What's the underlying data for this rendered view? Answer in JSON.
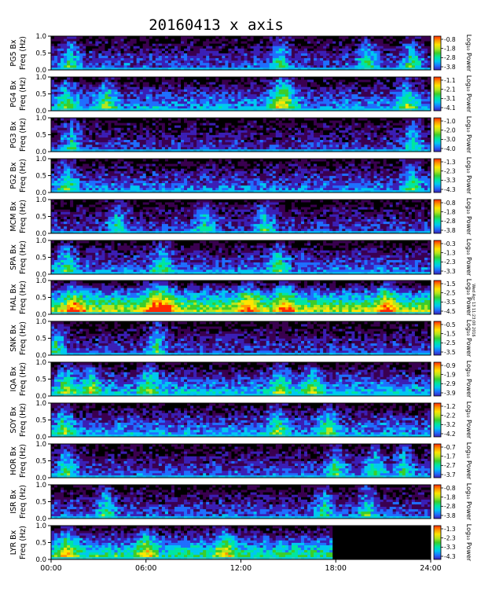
{
  "title": "20160413 x axis",
  "colorbar_label": "Log₁₀ Power",
  "freq_ticks": [
    "1.0",
    "0.5",
    "0.0"
  ],
  "side_note": "Wed Apr 13 11:23:00 2016",
  "colormap": [
    "#000000",
    "#3a0050",
    "#3b1fb5",
    "#1f6fff",
    "#00c8f0",
    "#00e6a0",
    "#3ccd2a",
    "#b4e61e",
    "#ffe600",
    "#ff9600",
    "#ff2800"
  ],
  "chart_data": {
    "type": "heatmap",
    "title": "20160413 x axis",
    "x_ticks": [
      "00:00",
      "06:00",
      "12:00",
      "18:00",
      "24:00"
    ],
    "xlim_hours": [
      0,
      24
    ],
    "ylim_hz": [
      0.0,
      1.0
    ],
    "stations": [
      {
        "label": "PG5 Bx\n(Hz)\nFreq",
        "ylabel": [
          "PG5 Bx",
          "Freq (Hz)"
        ],
        "cbar": [
          "-0.8",
          "-1.8",
          "-2.8",
          "-3.8"
        ],
        "activity": 0.25,
        "events": [
          1.2,
          14.5,
          20.0,
          22.8
        ]
      },
      {
        "label": "PG4 Bx",
        "ylabel": [
          "PG4 Bx",
          "Freq (Hz)"
        ],
        "cbar": [
          "-1.1",
          "-2.1",
          "-3.1",
          "-4.1"
        ],
        "activity": 0.35,
        "events": [
          1.0,
          3.5,
          14.3,
          14.9,
          22.5
        ]
      },
      {
        "label": "PG3 Bx",
        "ylabel": [
          "PG3 Bx",
          "Freq (Hz)"
        ],
        "cbar": [
          "-1.0",
          "-2.0",
          "-3.0",
          "-4.0"
        ],
        "activity": 0.2,
        "events": [
          1.3,
          22.9
        ]
      },
      {
        "label": "PG2 Bx",
        "ylabel": [
          "PG2 Bx",
          "Freq (Hz)"
        ],
        "cbar": [
          "-1.3",
          "-2.3",
          "-3.3",
          "-4.3"
        ],
        "activity": 0.3,
        "events": [
          1.0,
          22.8
        ]
      },
      {
        "label": "MCM Bx",
        "ylabel": [
          "MCM Bx",
          "Freq (Hz)"
        ],
        "cbar": [
          "-0.8",
          "-1.8",
          "-2.8",
          "-3.8"
        ],
        "activity": 0.22,
        "events": [
          4.2,
          9.7,
          13.5
        ]
      },
      {
        "label": "SPA Bx",
        "ylabel": [
          "SPA Bx",
          "Freq (Hz)"
        ],
        "cbar": [
          "-0.3",
          "-1.3",
          "-2.3",
          "-3.3"
        ],
        "activity": 0.3,
        "events": [
          1.0,
          7.0,
          14.4
        ]
      },
      {
        "label": "HAL Bx",
        "ylabel": [
          "HAL Bx",
          "Freq (Hz)"
        ],
        "cbar": [
          "-1.5",
          "-2.5",
          "-3.5",
          "-4.5"
        ],
        "activity": 0.75,
        "events": [
          1.5,
          6.5,
          7.3,
          12.5,
          14.8,
          21.2
        ]
      },
      {
        "label": "SNK Bx",
        "ylabel": [
          "SNK Bx",
          "Freq (Hz)"
        ],
        "cbar": [
          "-0.5",
          "-1.5",
          "-2.5",
          "-3.5"
        ],
        "activity": 0.22,
        "events": [
          0.3,
          6.7
        ]
      },
      {
        "label": "IQA Bx",
        "ylabel": [
          "IQA Bx",
          "Freq (Hz)"
        ],
        "cbar": [
          "-0.9",
          "-1.9",
          "-2.9",
          "-3.9"
        ],
        "activity": 0.4,
        "events": [
          1.0,
          2.5,
          6.2,
          14.5,
          16.5
        ]
      },
      {
        "label": "SOY Bx",
        "ylabel": [
          "SOY Bx",
          "Freq (Hz)"
        ],
        "cbar": [
          "-1.2",
          "-2.2",
          "-3.2",
          "-4.2"
        ],
        "activity": 0.35,
        "events": [
          0.8,
          14.3,
          17.5
        ]
      },
      {
        "label": "HOR Bx",
        "ylabel": [
          "HOR Bx",
          "Freq (Hz)"
        ],
        "cbar": [
          "-0.7",
          "-1.7",
          "-2.7",
          "-3.7"
        ],
        "activity": 0.25,
        "events": [
          1.0,
          18.0,
          20.5,
          22.3
        ]
      },
      {
        "label": "ISR Bx",
        "ylabel": [
          "ISR Bx",
          "Freq (Hz)"
        ],
        "cbar": [
          "-0.8",
          "-1.8",
          "-2.8",
          "-3.8"
        ],
        "activity": 0.25,
        "events": [
          3.5,
          17.2,
          20.0
        ]
      },
      {
        "label": "LYR Bx",
        "ylabel": [
          "LYR Bx",
          "Freq (Hz)"
        ],
        "cbar": [
          "-1.3",
          "-2.3",
          "-3.3",
          "-4.3"
        ],
        "activity": 0.55,
        "events": [
          1.0,
          6.0,
          11.0
        ],
        "data_end_hour": 17.8
      }
    ]
  }
}
